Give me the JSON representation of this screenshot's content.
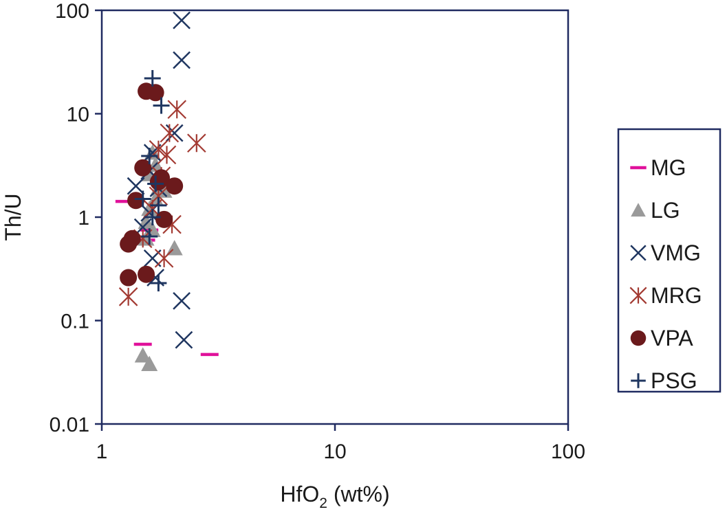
{
  "chart_data": {
    "type": "scatter",
    "x_scale": "log",
    "y_scale": "log",
    "xlim": [
      1,
      100
    ],
    "ylim": [
      0.01,
      100
    ],
    "xlabel_main": "HfO",
    "xlabel_sub": "2",
    "xlabel_tail": " (wt%)",
    "ylabel": "Th/U",
    "x_ticks": [
      {
        "value": 1,
        "label": "1"
      },
      {
        "value": 10,
        "label": "10"
      },
      {
        "value": 100,
        "label": "100"
      }
    ],
    "y_ticks": [
      {
        "value": 0.01,
        "label": "0.01"
      },
      {
        "value": 0.1,
        "label": "0.1"
      },
      {
        "value": 1,
        "label": "1"
      },
      {
        "value": 10,
        "label": "10"
      },
      {
        "value": 100,
        "label": "100"
      }
    ],
    "grid": false,
    "legend_position": "right",
    "series": [
      {
        "name": "MG",
        "marker": "dash",
        "color": "#e0119a",
        "points": [
          [
            1.25,
            1.42
          ],
          [
            1.5,
            0.059
          ],
          [
            2.9,
            0.047
          ],
          [
            1.6,
            0.75
          ],
          [
            1.55,
            0.6
          ]
        ]
      },
      {
        "name": "LG",
        "marker": "triangle",
        "color": "#9a9a9a",
        "points": [
          [
            1.5,
            0.046
          ],
          [
            1.6,
            0.038
          ],
          [
            1.55,
            0.9
          ],
          [
            1.6,
            1.2
          ],
          [
            1.65,
            0.75
          ],
          [
            1.7,
            3.2
          ],
          [
            1.6,
            2.6
          ],
          [
            1.75,
            1.9
          ],
          [
            1.65,
            4.2
          ],
          [
            1.7,
            1.5
          ],
          [
            2.05,
            0.5
          ],
          [
            1.8,
            2.2
          ],
          [
            1.85,
            1.8
          ],
          [
            1.55,
            0.62
          ]
        ]
      },
      {
        "name": "VMG",
        "marker": "x",
        "color": "#1f3660",
        "points": [
          [
            2.2,
            80
          ],
          [
            2.2,
            33
          ],
          [
            2.05,
            6.5
          ],
          [
            1.65,
            4.2
          ],
          [
            1.6,
            2.8
          ],
          [
            1.75,
            1.9
          ],
          [
            1.4,
            2.0
          ],
          [
            1.6,
            1.1
          ],
          [
            1.65,
            0.4
          ],
          [
            1.7,
            0.26
          ],
          [
            2.2,
            0.155
          ],
          [
            2.25,
            0.065
          ],
          [
            1.5,
            0.8
          ]
        ]
      },
      {
        "name": "MRG",
        "marker": "asterisk",
        "color": "#a33a32",
        "points": [
          [
            1.3,
            0.17
          ],
          [
            1.5,
            0.62
          ],
          [
            1.85,
            0.4
          ],
          [
            2.0,
            0.85
          ],
          [
            1.75,
            1.6
          ],
          [
            1.8,
            2.5
          ],
          [
            1.9,
            4.0
          ],
          [
            1.75,
            4.5
          ],
          [
            2.1,
            11
          ],
          [
            1.95,
            6.5
          ],
          [
            2.55,
            5.2
          ],
          [
            1.65,
            1.2
          ]
        ]
      },
      {
        "name": "VPA",
        "marker": "circle",
        "color": "#6b1a1c",
        "points": [
          [
            1.55,
            16.5
          ],
          [
            1.7,
            16
          ],
          [
            1.5,
            3.0
          ],
          [
            1.4,
            1.45
          ],
          [
            1.3,
            0.55
          ],
          [
            1.35,
            0.62
          ],
          [
            1.3,
            0.26
          ],
          [
            1.55,
            0.28
          ],
          [
            1.85,
            0.95
          ],
          [
            1.8,
            2.4
          ],
          [
            2.05,
            2.0
          ],
          [
            1.75,
            2.2
          ]
        ]
      },
      {
        "name": "PSG",
        "marker": "plus",
        "color": "#1f3660",
        "points": [
          [
            1.65,
            22
          ],
          [
            1.8,
            12
          ],
          [
            1.6,
            3.9
          ],
          [
            1.7,
            2.1
          ],
          [
            1.5,
            1.5
          ],
          [
            1.65,
            1.0
          ],
          [
            1.6,
            0.65
          ],
          [
            1.75,
            0.23
          ],
          [
            1.75,
            1.3
          ]
        ]
      }
    ]
  }
}
